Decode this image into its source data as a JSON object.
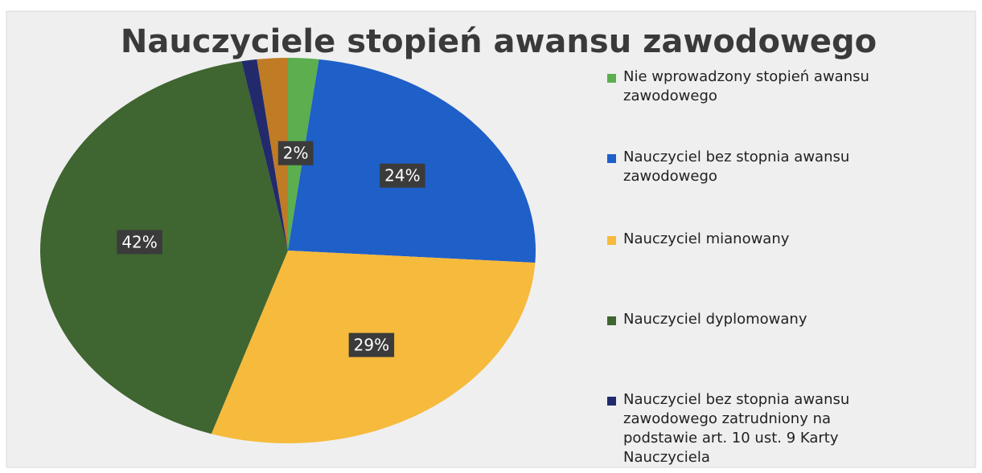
{
  "chart_data": {
    "type": "pie",
    "title": "Nauczyciele stopień awansu zawodowego",
    "categories": [
      "Nie wprowadzony stopień awansu zawodowego",
      "Nauczyciel bez stopnia awansu zawodowego",
      "Nauczyciel mianowany",
      "Nauczyciel dyplomowany",
      "Nauczyciel bez stopnia awansu zawodowego zatrudniony na podstawie art. 10 ust. 9 Karty Nauczyciela",
      null
    ],
    "values": [
      2,
      24,
      29,
      42,
      1,
      2
    ],
    "value_labels": [
      "2%",
      "24%",
      "29%",
      "42%",
      null,
      null
    ],
    "colors": [
      "#5cae4f",
      "#1f5fc8",
      "#f6ba3c",
      "#3f6530",
      "#222a6c",
      "#c07b25"
    ],
    "legend": "right"
  }
}
